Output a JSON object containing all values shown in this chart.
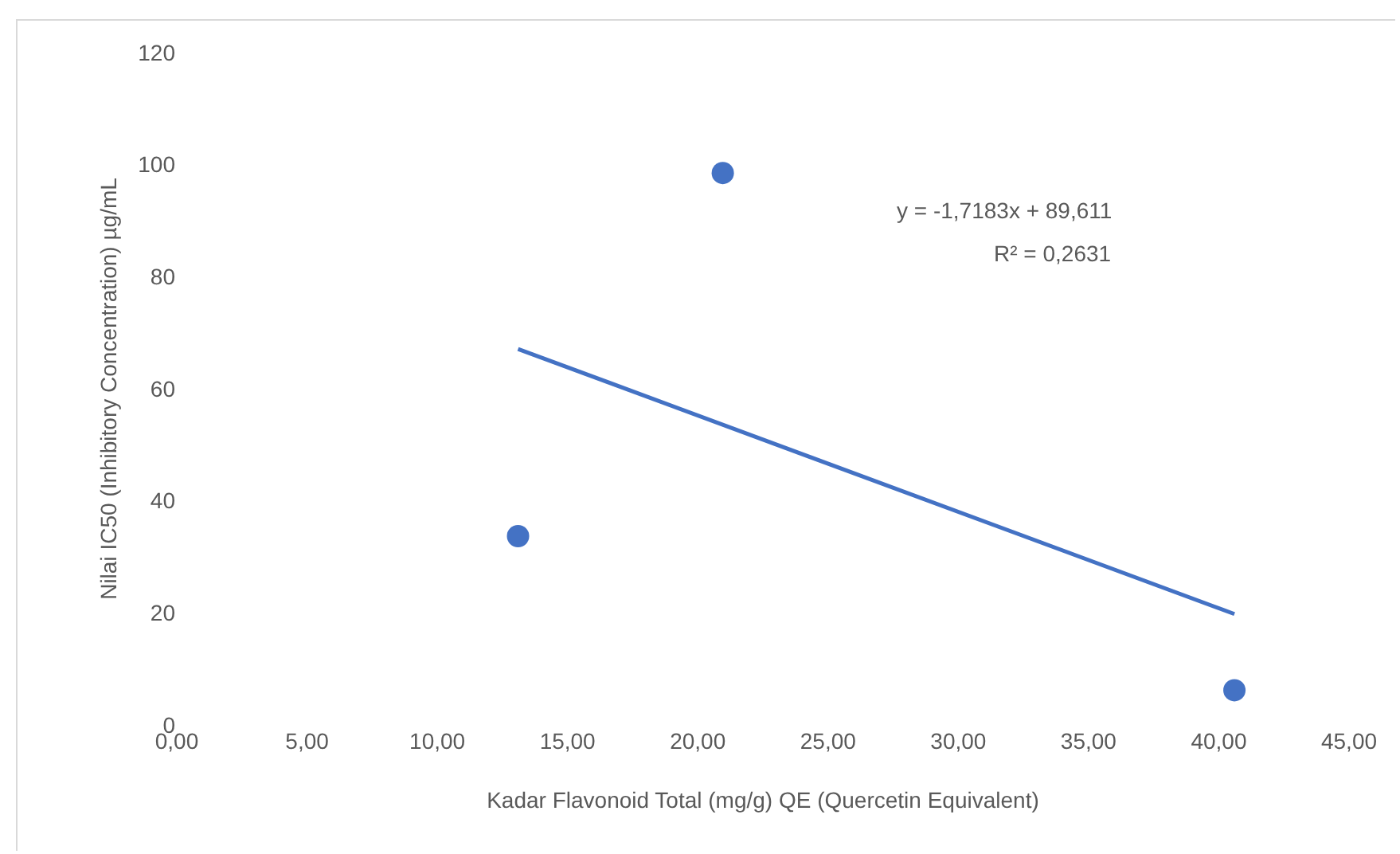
{
  "chart_data": {
    "type": "scatter",
    "xlabel": "Kadar Flavonoid Total (mg/g) QE (Quercetin Equivalent)",
    "ylabel": "Nilai IC50 (Inhibitory Concentration) µg/mL",
    "x": [
      13.1,
      20.96,
      40.6
    ],
    "series": [
      {
        "color": "#4472c4",
        "values": [
          33.7,
          98.5,
          6.2
        ],
        "marker": "circle"
      },
      {
        "type": "line",
        "color": "#4472c4",
        "x": [
          13.1,
          40.6
        ],
        "values": [
          67.1,
          19.8
        ],
        "marker": "none"
      }
    ],
    "xlim": [
      0,
      45
    ],
    "xticks": [
      {
        "value": 0,
        "label": "0,00"
      },
      {
        "value": 5,
        "label": "5,00"
      },
      {
        "value": 10,
        "label": "10,00"
      },
      {
        "value": 15,
        "label": "15,00"
      },
      {
        "value": 20,
        "label": "20,00"
      },
      {
        "value": 25,
        "label": "25,00"
      },
      {
        "value": 30,
        "label": "30,00"
      },
      {
        "value": 35,
        "label": "35,00"
      },
      {
        "value": 40,
        "label": "40,00"
      },
      {
        "value": 45,
        "label": "45,00"
      }
    ],
    "ylim": [
      0,
      120
    ],
    "yticks": [
      0,
      20,
      40,
      60,
      80,
      100,
      120
    ],
    "grid": false,
    "legend": false,
    "line_style": "solid",
    "annotations": [
      "y = -1,7183x + 89,611",
      "R² = 0,2631"
    ]
  }
}
